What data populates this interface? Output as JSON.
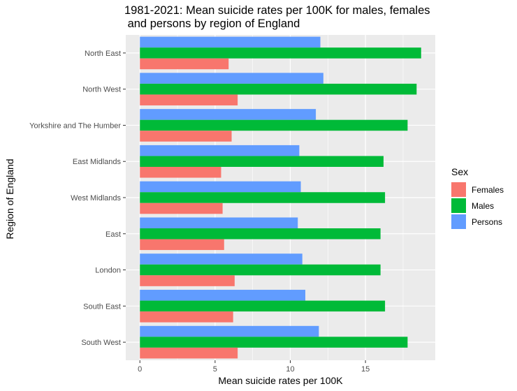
{
  "chart_data": {
    "type": "bar",
    "orientation": "horizontal",
    "title_line1": "1981-2021: Mean suicide rates per 100K for males, females",
    "title_line2": " and persons by region of England",
    "xlabel": "Mean suicide rates per 100K",
    "ylabel": "Region of England",
    "categories": [
      "North East",
      "North West",
      "Yorkshire and The Humber",
      "East Midlands",
      "West Midlands",
      "East",
      "London",
      "South East",
      "South West"
    ],
    "series": [
      {
        "name": "Females",
        "color": "#F8766D",
        "values": [
          5.9,
          6.5,
          6.1,
          5.4,
          5.5,
          5.6,
          6.3,
          6.2,
          6.5
        ]
      },
      {
        "name": "Males",
        "color": "#00BA38",
        "values": [
          18.7,
          18.4,
          17.8,
          16.2,
          16.3,
          16.0,
          16.0,
          16.3,
          17.8
        ]
      },
      {
        "name": "Persons",
        "color": "#619CFF",
        "values": [
          12.0,
          12.2,
          11.7,
          10.6,
          10.7,
          10.5,
          10.8,
          11.0,
          11.9
        ]
      }
    ],
    "xticks": [
      0,
      5,
      10,
      15
    ],
    "xlim": [
      -0.94,
      19.64
    ],
    "legend_title": "Sex",
    "legend_position": "right",
    "grid": true,
    "background": "#EBEBEB"
  }
}
